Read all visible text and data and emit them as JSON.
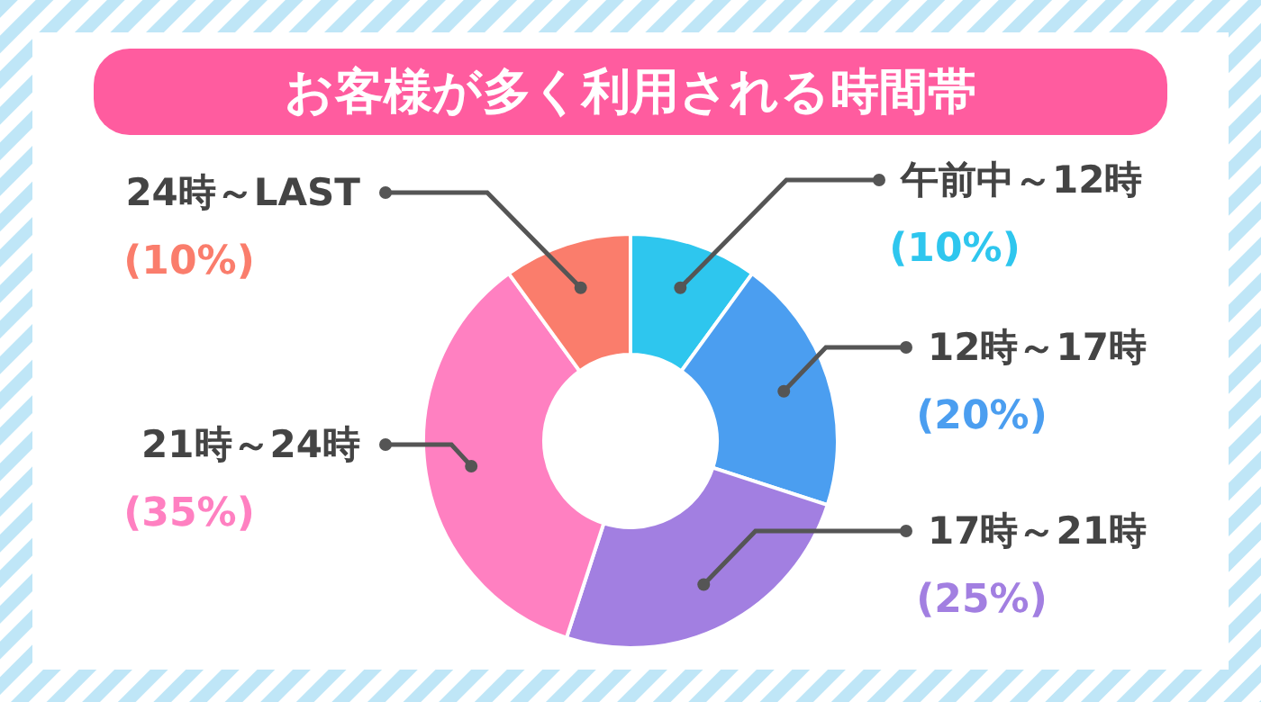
{
  "chart_data": {
    "type": "donut",
    "title": "お客様が多く利用される時間帯",
    "categories": [
      "午前中～12時",
      "12時～17時",
      "17時～21時",
      "21時～24時",
      "24時～LAST"
    ],
    "values": [
      10,
      20,
      25,
      35,
      10
    ],
    "colors": [
      "#2ec6ee",
      "#4b9ef0",
      "#a27fe1",
      "#ff80c1",
      "#fa7d6c"
    ],
    "value_labels": [
      "(10%)",
      "(20%)",
      "(25%)",
      "(35%)",
      "(10%)"
    ]
  }
}
